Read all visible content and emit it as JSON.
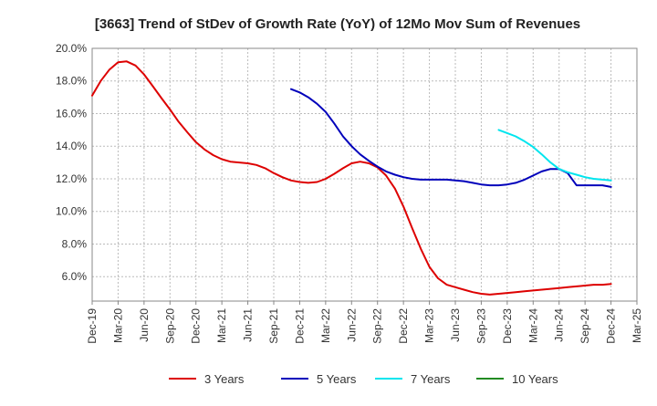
{
  "chart_data": {
    "type": "line",
    "title": "[3663]  Trend of StDev of Growth Rate (YoY) of 12Mo Mov Sum of Revenues",
    "xlabel": "",
    "ylabel": "",
    "categories": [
      "Dec-19",
      "Mar-20",
      "Jun-20",
      "Sep-20",
      "Dec-20",
      "Mar-21",
      "Jun-21",
      "Sep-21",
      "Dec-21",
      "Mar-22",
      "Jun-22",
      "Sep-22",
      "Dec-22",
      "Mar-23",
      "Jun-23",
      "Sep-23",
      "Dec-23",
      "Mar-24",
      "Jun-24",
      "Sep-24",
      "Dec-24",
      "Mar-25"
    ],
    "ylim": [
      4.5,
      20.0
    ],
    "yticks": [
      6.0,
      8.0,
      10.0,
      12.0,
      14.0,
      16.0,
      18.0,
      20.0
    ],
    "ytick_labels": [
      "6.0%",
      "8.0%",
      "10.0%",
      "12.0%",
      "14.0%",
      "16.0%",
      "18.0%",
      "20.0%"
    ],
    "grid": true,
    "legend_position": "bottom",
    "series": [
      {
        "name": "3 Years",
        "color": "#dd0000",
        "x": [
          0,
          0.33,
          0.67,
          1,
          1.33,
          1.67,
          2,
          2.33,
          2.67,
          3,
          3.33,
          3.67,
          4,
          4.33,
          4.67,
          5,
          5.33,
          5.67,
          6,
          6.33,
          6.67,
          7,
          7.33,
          7.67,
          8,
          8.33,
          8.67,
          9,
          9.33,
          9.67,
          10,
          10.33,
          10.67,
          11,
          11.33,
          11.67,
          12,
          12.33,
          12.67,
          13,
          13.33,
          13.67,
          14,
          14.33,
          14.67,
          15,
          15.33,
          15.67,
          16,
          16.33,
          16.67,
          17,
          17.33,
          17.67,
          18,
          18.33,
          18.67,
          19,
          19.33,
          19.67,
          20
        ],
        "values": [
          17.1,
          18.0,
          18.7,
          19.15,
          19.2,
          18.95,
          18.4,
          17.7,
          16.95,
          16.25,
          15.5,
          14.85,
          14.25,
          13.8,
          13.45,
          13.2,
          13.05,
          13.0,
          12.95,
          12.85,
          12.65,
          12.35,
          12.1,
          11.9,
          11.8,
          11.75,
          11.8,
          12.0,
          12.3,
          12.65,
          12.95,
          13.05,
          12.95,
          12.7,
          12.2,
          11.4,
          10.3,
          9.0,
          7.7,
          6.6,
          5.9,
          5.5,
          5.35,
          5.2,
          5.05,
          4.95,
          4.9,
          4.95,
          5.0,
          5.05,
          5.1,
          5.15,
          5.2,
          5.25,
          5.3,
          5.35,
          5.4,
          5.45,
          5.5,
          5.5,
          5.55
        ]
      },
      {
        "name": "5 Years",
        "color": "#0000bb",
        "x": [
          7.67,
          8,
          8.33,
          8.67,
          9,
          9.33,
          9.67,
          10,
          10.33,
          10.67,
          11,
          11.33,
          11.67,
          12,
          12.33,
          12.67,
          13,
          13.33,
          13.67,
          14,
          14.33,
          14.67,
          15,
          15.33,
          15.67,
          16,
          16.33,
          16.67,
          17,
          17.33,
          17.67,
          18,
          18.33,
          18.67,
          19,
          19.33,
          19.67,
          20
        ],
        "values": [
          17.5,
          17.3,
          17.0,
          16.6,
          16.1,
          15.4,
          14.6,
          14.0,
          13.5,
          13.1,
          12.75,
          12.45,
          12.25,
          12.1,
          12.0,
          11.95,
          11.95,
          11.95,
          11.95,
          11.9,
          11.85,
          11.75,
          11.65,
          11.6,
          11.6,
          11.65,
          11.75,
          11.95,
          12.2,
          12.45,
          12.6,
          12.6,
          12.35,
          11.6,
          11.6,
          11.6,
          11.6,
          11.5
        ]
      },
      {
        "name": "7 Years",
        "color": "#00e5ee",
        "x": [
          15.67,
          16,
          16.33,
          16.67,
          17,
          17.33,
          17.67,
          18,
          18.33,
          18.67,
          19,
          19.33,
          19.67,
          20
        ],
        "values": [
          15.0,
          14.8,
          14.6,
          14.3,
          13.95,
          13.5,
          13.0,
          12.6,
          12.4,
          12.25,
          12.1,
          12.0,
          11.95,
          11.9
        ]
      },
      {
        "name": "10 Years",
        "color": "#228b22",
        "x": [],
        "values": []
      }
    ]
  }
}
